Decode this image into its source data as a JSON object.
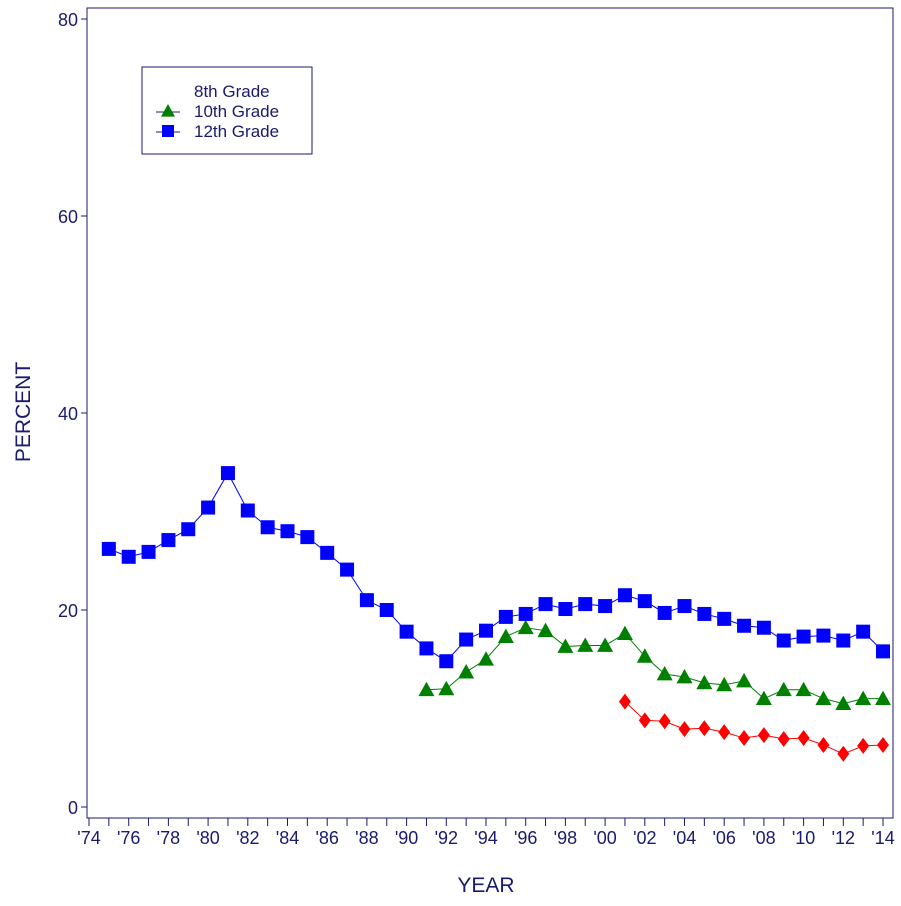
{
  "chart_data": {
    "type": "line",
    "xlabel": "YEAR",
    "ylabel": "PERCENT",
    "ylim": [
      0,
      80
    ],
    "xlim": [
      1974,
      2014
    ],
    "y_ticks": [
      "0",
      "20",
      "40",
      "60",
      "80"
    ],
    "x_ticks": [
      "'74",
      "'76",
      "'78",
      "'80",
      "'82",
      "'84",
      "'86",
      "'88",
      "'90",
      "'92",
      "'94",
      "'96",
      "'98",
      "'00",
      "'02",
      "'04",
      "'06",
      "'08",
      "'10",
      "'12",
      "'14"
    ],
    "legend_position": "top-left",
    "series": [
      {
        "name": "8th Grade",
        "color": "#ff0000",
        "marker": "diamond",
        "x": [
          2001,
          2002,
          2003,
          2004,
          2005,
          2006,
          2007,
          2008,
          2009,
          2010,
          2011,
          2012,
          2013,
          2014
        ],
        "values": [
          10.7,
          8.8,
          8.7,
          7.9,
          8.0,
          7.6,
          7.0,
          7.3,
          6.9,
          7.0,
          6.3,
          5.4,
          6.2,
          6.3
        ]
      },
      {
        "name": "10th Grade",
        "color": "#008000",
        "marker": "triangle",
        "x": [
          1991,
          1992,
          1993,
          1994,
          1995,
          1996,
          1997,
          1998,
          1999,
          2000,
          2001,
          2002,
          2003,
          2004,
          2005,
          2006,
          2007,
          2008,
          2009,
          2010,
          2011,
          2012,
          2013,
          2014
        ],
        "values": [
          11.9,
          12.0,
          13.7,
          15.0,
          17.3,
          18.2,
          17.9,
          16.3,
          16.4,
          16.4,
          17.6,
          15.3,
          13.5,
          13.2,
          12.6,
          12.4,
          12.8,
          11.0,
          11.9,
          11.9,
          11.0,
          10.5,
          11.0,
          11.0
        ]
      },
      {
        "name": "12th Grade",
        "color": "#0000ff",
        "marker": "square",
        "x": [
          1975,
          1976,
          1977,
          1978,
          1979,
          1980,
          1981,
          1982,
          1983,
          1984,
          1985,
          1986,
          1987,
          1988,
          1989,
          1990,
          1991,
          1992,
          1993,
          1994,
          1995,
          1996,
          1997,
          1998,
          1999,
          2000,
          2001,
          2002,
          2003,
          2004,
          2005,
          2006,
          2007,
          2008,
          2009,
          2010,
          2011,
          2012,
          2013,
          2014
        ],
        "values": [
          26.2,
          25.4,
          25.9,
          27.1,
          28.2,
          30.4,
          33.9,
          30.1,
          28.4,
          28.0,
          27.4,
          25.8,
          24.1,
          21.0,
          20.0,
          17.8,
          16.1,
          14.8,
          17.0,
          17.9,
          19.3,
          19.6,
          20.6,
          20.1,
          20.6,
          20.4,
          21.5,
          20.9,
          19.7,
          20.4,
          19.6,
          19.1,
          18.4,
          18.2,
          16.9,
          17.3,
          17.4,
          16.9,
          17.8,
          15.8
        ]
      }
    ]
  }
}
